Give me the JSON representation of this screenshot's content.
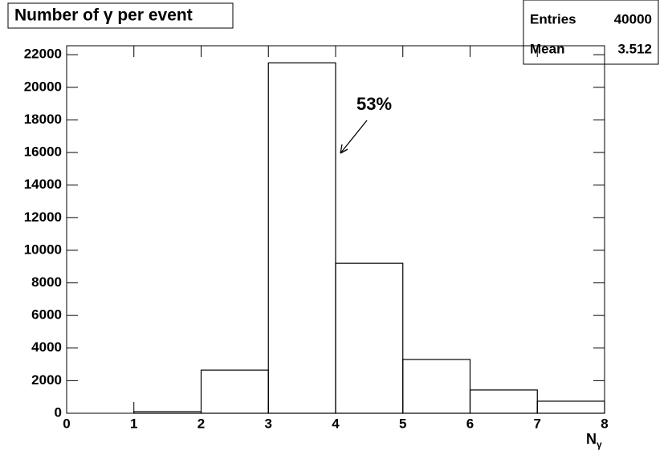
{
  "chart_data": {
    "type": "histogram",
    "title": "Number of γ per event",
    "xlabel": {
      "text": "N",
      "subscript": "γ"
    },
    "bins": [
      0,
      1,
      2,
      3,
      4,
      5,
      6,
      7,
      8
    ],
    "values": [
      0,
      100,
      2650,
      21500,
      9200,
      3300,
      1430,
      740
    ],
    "color": "#000000",
    "xlim": [
      0,
      8
    ],
    "xticks": [
      0,
      1,
      2,
      3,
      4,
      5,
      6,
      7,
      8
    ],
    "ylim": [
      0,
      22550
    ],
    "yticks": [
      0,
      2000,
      4000,
      6000,
      8000,
      10000,
      12000,
      14000,
      16000,
      18000,
      20000,
      22000
    ],
    "stats": [
      {
        "label": "Entries",
        "value": 40000
      },
      {
        "label": "Mean",
        "value": 3.512
      }
    ],
    "annotation": "53%"
  }
}
